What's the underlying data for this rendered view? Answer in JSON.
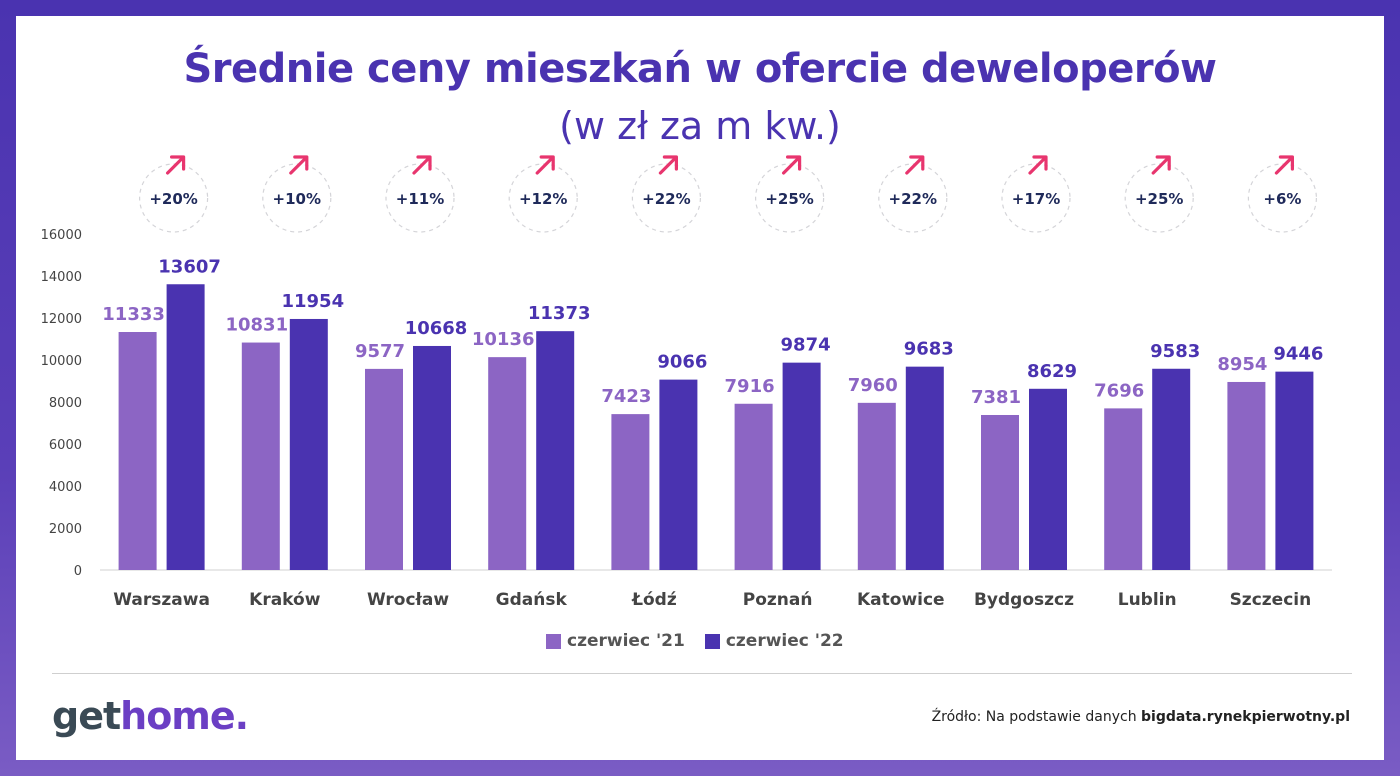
{
  "header": {
    "title": "Średnie ceny mieszkań w ofercie deweloperów",
    "subtitle": "(w zł za m kw.)"
  },
  "chart_data": {
    "type": "bar",
    "categories": [
      "Warszawa",
      "Kraków",
      "Wrocław",
      "Gdańsk",
      "Łódź",
      "Poznań",
      "Katowice",
      "Bydgoszcz",
      "Lublin",
      "Szczecin"
    ],
    "series": [
      {
        "name": "czerwiec '21",
        "values": [
          11333,
          10831,
          9577,
          10136,
          7423,
          7916,
          7960,
          7381,
          7696,
          8954
        ],
        "color": "#8c65c4"
      },
      {
        "name": "czerwiec '22",
        "values": [
          13607,
          11954,
          10668,
          11373,
          9066,
          9874,
          9683,
          8629,
          9583,
          9446
        ],
        "color": "#4a33b0"
      }
    ],
    "changes": [
      "+20%",
      "+10%",
      "+11%",
      "+12%",
      "+22%",
      "+25%",
      "+22%",
      "+17%",
      "+25%",
      "+6%"
    ],
    "ylim": [
      0,
      16000
    ],
    "yticks": [
      0,
      2000,
      4000,
      6000,
      8000,
      10000,
      12000,
      14000,
      16000
    ],
    "legend": "bottom-center",
    "grid": false,
    "title": "Średnie ceny mieszkań w ofercie deweloperów",
    "subtitle": "(w zł za m kw.)"
  },
  "branding": {
    "logo_get": "get",
    "logo_home": "home.",
    "source_prefix": "Źródło: Na podstawie danych ",
    "source_bold": "bigdata.rynekpierwotny.pl"
  },
  "colors": {
    "accent": "#4a33b0",
    "light_bar": "#8c65c4",
    "arrow": "#e8356e",
    "change_text": "#1f2a5a"
  }
}
